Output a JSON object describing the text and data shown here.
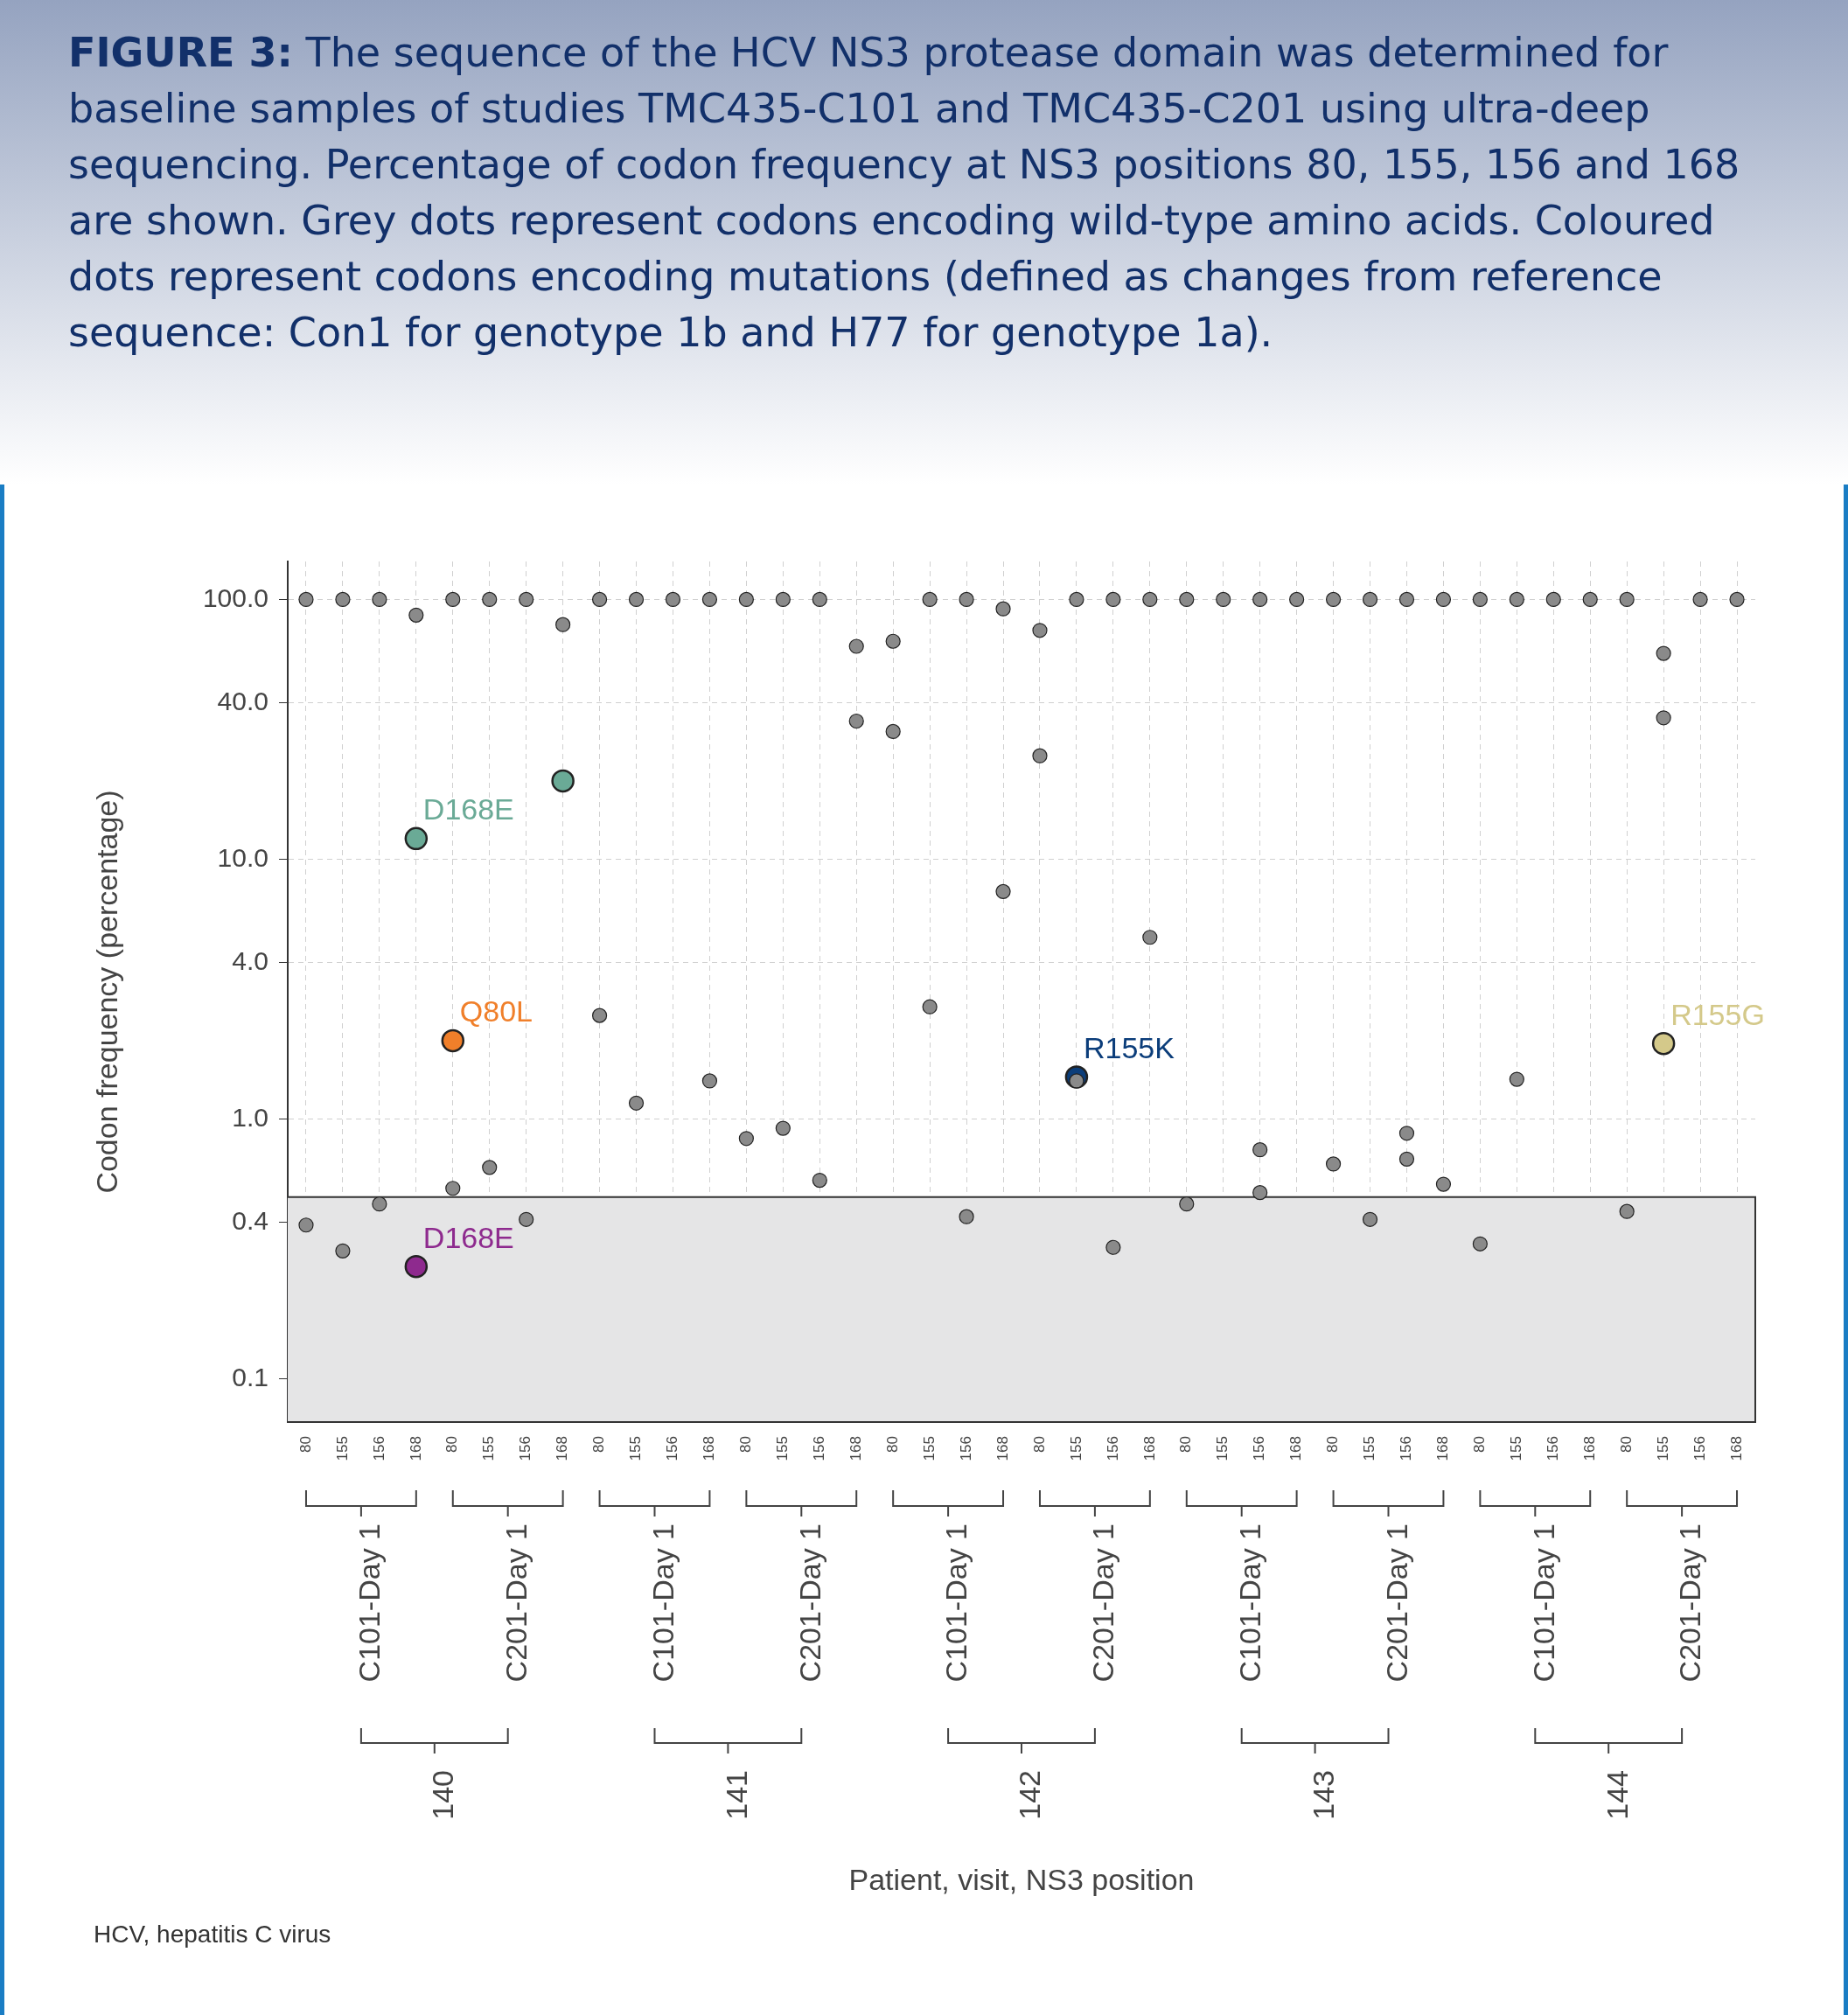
{
  "chart_data": {
    "type": "scatter",
    "title": "FIGURE 3: The sequence of the HCV NS3 protease domain was determined for baseline samples of studies TMC435-C101 and TMC435-C201 using ultra-deep sequencing. Percentage of codon frequency at NS3 positions 80, 155, 156 and 168 are shown. Grey dots represent codons encoding wild-type amino acids. Coloured dots represent codons encoding mutations (defined as changes from reference sequence: Con1 for genotype 1b and H77 for genotype 1a).",
    "ylabel": "Codon frequency (percentage)",
    "categories": [
      "80",
      "155",
      "156",
      "168",
      "80",
      "155",
      "156",
      "168",
      "80",
      "155",
      "156",
      "168",
      "80",
      "155",
      "156",
      "168",
      "80",
      "155",
      "156",
      "168",
      "80",
      "155",
      "156",
      "168",
      "80",
      "155",
      "156",
      "168",
      "80",
      "155",
      "156",
      "168",
      "80",
      "155",
      "156",
      "168",
      "80",
      "155",
      "156",
      "168"
    ],
    "series": [
      {
        "color": "#8a8a8a",
        "values": [
          100,
          100,
          100,
          87,
          100,
          100,
          100,
          80,
          100,
          100,
          100,
          100,
          100,
          100,
          100,
          66,
          69,
          100,
          100,
          92,
          76,
          100,
          100,
          100,
          100,
          100,
          100,
          100,
          100,
          100,
          100,
          100,
          100,
          100,
          100,
          100,
          100,
          62,
          100,
          100
        ]
      },
      {
        "color": "#8a8a8a",
        "values": [
          0.39,
          0.31,
          0.47,
          null,
          0.54,
          0.65,
          0.41,
          null,
          2.5,
          1.15,
          null,
          1.4,
          0.84,
          0.92,
          0.58,
          34,
          31,
          2.7,
          0.42,
          7.5,
          25,
          1.4,
          0.32,
          5.0,
          0.47,
          null,
          0.76,
          null,
          0.67,
          0.41,
          0.88,
          0.56,
          0.33,
          1.42,
          null,
          null,
          0.44,
          35,
          null,
          null
        ]
      },
      {
        "color": "#8a8a8a",
        "values": [
          null,
          null,
          null,
          null,
          null,
          null,
          null,
          null,
          null,
          null,
          null,
          null,
          null,
          null,
          null,
          null,
          null,
          null,
          null,
          null,
          null,
          null,
          null,
          null,
          null,
          null,
          0.52,
          null,
          null,
          null,
          0.7,
          null,
          null,
          null,
          null,
          null,
          null,
          null,
          null,
          null
        ]
      },
      {
        "name": "D168E",
        "color": "#6aaa96",
        "values": [
          null,
          null,
          null,
          12,
          null,
          null,
          null,
          20,
          null,
          null,
          null,
          null,
          null,
          null,
          null,
          null,
          null,
          null,
          null,
          null,
          null,
          null,
          null,
          null,
          null,
          null,
          null,
          null,
          null,
          null,
          null,
          null,
          null,
          null,
          null,
          null,
          null,
          null,
          null,
          null
        ]
      },
      {
        "name": "Q80L",
        "color": "#f07f2a",
        "values": [
          null,
          null,
          null,
          null,
          2.0,
          null,
          null,
          null,
          null,
          null,
          null,
          null,
          null,
          null,
          null,
          null,
          null,
          null,
          null,
          null,
          null,
          null,
          null,
          null,
          null,
          null,
          null,
          null,
          null,
          null,
          null,
          null,
          null,
          null,
          null,
          null,
          null,
          null,
          null,
          null
        ]
      },
      {
        "name": "D168E",
        "color": "#8e2a8e",
        "values": [
          null,
          null,
          null,
          0.27,
          null,
          null,
          null,
          null,
          null,
          null,
          null,
          null,
          null,
          null,
          null,
          null,
          null,
          null,
          null,
          null,
          null,
          null,
          null,
          null,
          null,
          null,
          null,
          null,
          null,
          null,
          null,
          null,
          null,
          null,
          null,
          null,
          null,
          null,
          null,
          null
        ]
      },
      {
        "name": "R155K",
        "color": "#0b3d7a",
        "values": [
          null,
          null,
          null,
          null,
          null,
          null,
          null,
          null,
          null,
          null,
          null,
          null,
          null,
          null,
          null,
          null,
          null,
          null,
          null,
          null,
          null,
          1.45,
          null,
          null,
          null,
          null,
          null,
          null,
          null,
          null,
          null,
          null,
          null,
          null,
          null,
          null,
          null,
          null,
          null,
          null
        ]
      },
      {
        "name": "R155G",
        "color": "#d4c98a",
        "values": [
          null,
          null,
          null,
          null,
          null,
          null,
          null,
          null,
          null,
          null,
          null,
          null,
          null,
          null,
          null,
          null,
          null,
          null,
          null,
          null,
          null,
          null,
          null,
          null,
          null,
          null,
          null,
          null,
          null,
          null,
          null,
          null,
          null,
          null,
          null,
          null,
          null,
          1.95,
          null,
          null
        ]
      }
    ],
    "log": "y",
    "ylim": [
      0.068,
      140
    ],
    "yticks": [
      {
        "value": 0.1,
        "label": "0.1"
      },
      {
        "value": 0.4,
        "label": "0.4"
      },
      {
        "value": 1,
        "label": "1.0"
      },
      {
        "value": 4,
        "label": "4.0"
      },
      {
        "value": 10,
        "label": "10.0"
      },
      {
        "value": 40,
        "label": "40.0"
      },
      {
        "value": 100,
        "label": "100.0"
      }
    ],
    "bands": [
      {
        "axis": "y",
        "from": 0.068,
        "to": 0.5,
        "color": "#e5e5e6"
      }
    ],
    "grid": true,
    "legend": false,
    "marker": "circle",
    "annotations": [
      "C101-Day 1",
      "C201-Day 1",
      "C101-Day 1",
      "C201-Day 1",
      "C101-Day 1",
      "C201-Day 1",
      "C101-Day 1",
      "C201-Day 1",
      "C101-Day 1",
      "C201-Day 1",
      "140",
      "141",
      "142",
      "143",
      "144",
      "Patient, visit, NS3 position",
      "HCV, hepatitis C virus"
    ]
  }
}
